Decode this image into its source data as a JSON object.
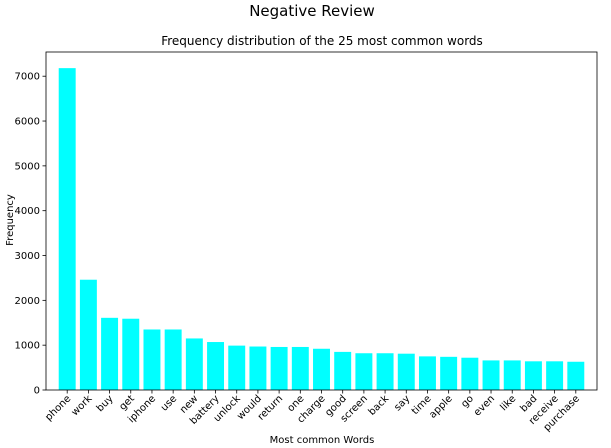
{
  "figure": {
    "suptitle": "Negative Review"
  },
  "chart_data": {
    "type": "bar",
    "title": "Frequency distribution of the 25 most common words",
    "xlabel": "Most common Words",
    "ylabel": "Frequency",
    "categories": [
      "phone",
      "work",
      "buy",
      "get",
      "iphone",
      "use",
      "new",
      "battery",
      "unlock",
      "would",
      "return",
      "one",
      "charge",
      "good",
      "screen",
      "back",
      "say",
      "time",
      "apple",
      "go",
      "even",
      "like",
      "bad",
      "receive",
      "purchase"
    ],
    "values": [
      7180,
      2460,
      1610,
      1590,
      1350,
      1350,
      1150,
      1070,
      990,
      970,
      960,
      960,
      920,
      850,
      820,
      820,
      810,
      750,
      740,
      720,
      660,
      660,
      640,
      640,
      630
    ],
    "ylim": [
      0,
      7540
    ],
    "yticks": [
      0,
      1000,
      2000,
      3000,
      4000,
      5000,
      6000,
      7000
    ],
    "bar_color": "#00ffff",
    "grid": false,
    "legend": "none"
  }
}
